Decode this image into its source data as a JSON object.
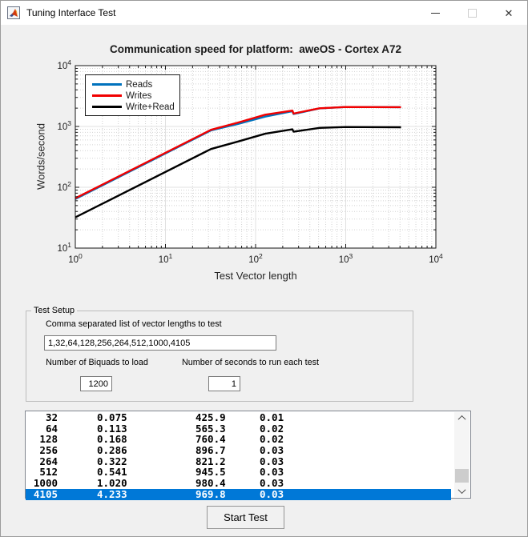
{
  "window": {
    "title": "Tuning Interface Test"
  },
  "chart_data": {
    "type": "line",
    "title": "Communication speed for platform:  aweOS - Cortex A72",
    "xlabel": "Test Vector length",
    "ylabel": "Words/second",
    "x_scale": "log",
    "y_scale": "log",
    "xlim": [
      1,
      10000
    ],
    "ylim": [
      10,
      10000
    ],
    "x_tick_exponents": [
      0,
      1,
      2,
      3,
      4
    ],
    "y_tick_exponents": [
      1,
      2,
      3,
      4
    ],
    "grid": true,
    "legend_position": "top-left",
    "x": [
      1,
      32,
      64,
      128,
      256,
      264,
      512,
      1000,
      4105
    ],
    "series": [
      {
        "name": "Reads",
        "color": "#0072bd",
        "values": [
          64,
          860,
          1100,
          1450,
          1780,
          1600,
          1980,
          2090,
          2070
        ]
      },
      {
        "name": "Writes",
        "color": "#f10000",
        "values": [
          66,
          880,
          1160,
          1560,
          1820,
          1630,
          1990,
          2090,
          2070
        ]
      },
      {
        "name": "Write+Read",
        "color": "#000000",
        "values": [
          32,
          425.9,
          565.3,
          760.4,
          896.7,
          821.2,
          945.5,
          980.4,
          969.8
        ]
      }
    ]
  },
  "test_setup": {
    "group_label": "Test Setup",
    "vector_label": "Comma separated list of vector lengths to test",
    "vector_value": "1,32,64,128,256,264,512,1000,4105",
    "biquads_label": "Number of Biquads to load",
    "biquads_value": "1200",
    "seconds_label": "Number of seconds to run each test",
    "seconds_value": "1"
  },
  "results": {
    "selected_index": 7,
    "rows": [
      [
        "32",
        "0.075",
        "425.9",
        "0.01"
      ],
      [
        "64",
        "0.113",
        "565.3",
        "0.02"
      ],
      [
        "128",
        "0.168",
        "760.4",
        "0.02"
      ],
      [
        "256",
        "0.286",
        "896.7",
        "0.03"
      ],
      [
        "264",
        "0.322",
        "821.2",
        "0.03"
      ],
      [
        "512",
        "0.541",
        "945.5",
        "0.03"
      ],
      [
        "1000",
        "1.020",
        "980.4",
        "0.03"
      ],
      [
        "4105",
        "4.233",
        "969.8",
        "0.03"
      ]
    ]
  },
  "start_button_label": "Start Test",
  "colors": {
    "selection": "#0078d7",
    "titlebar": "#ffffff",
    "window_bg": "#f0f0f0"
  }
}
